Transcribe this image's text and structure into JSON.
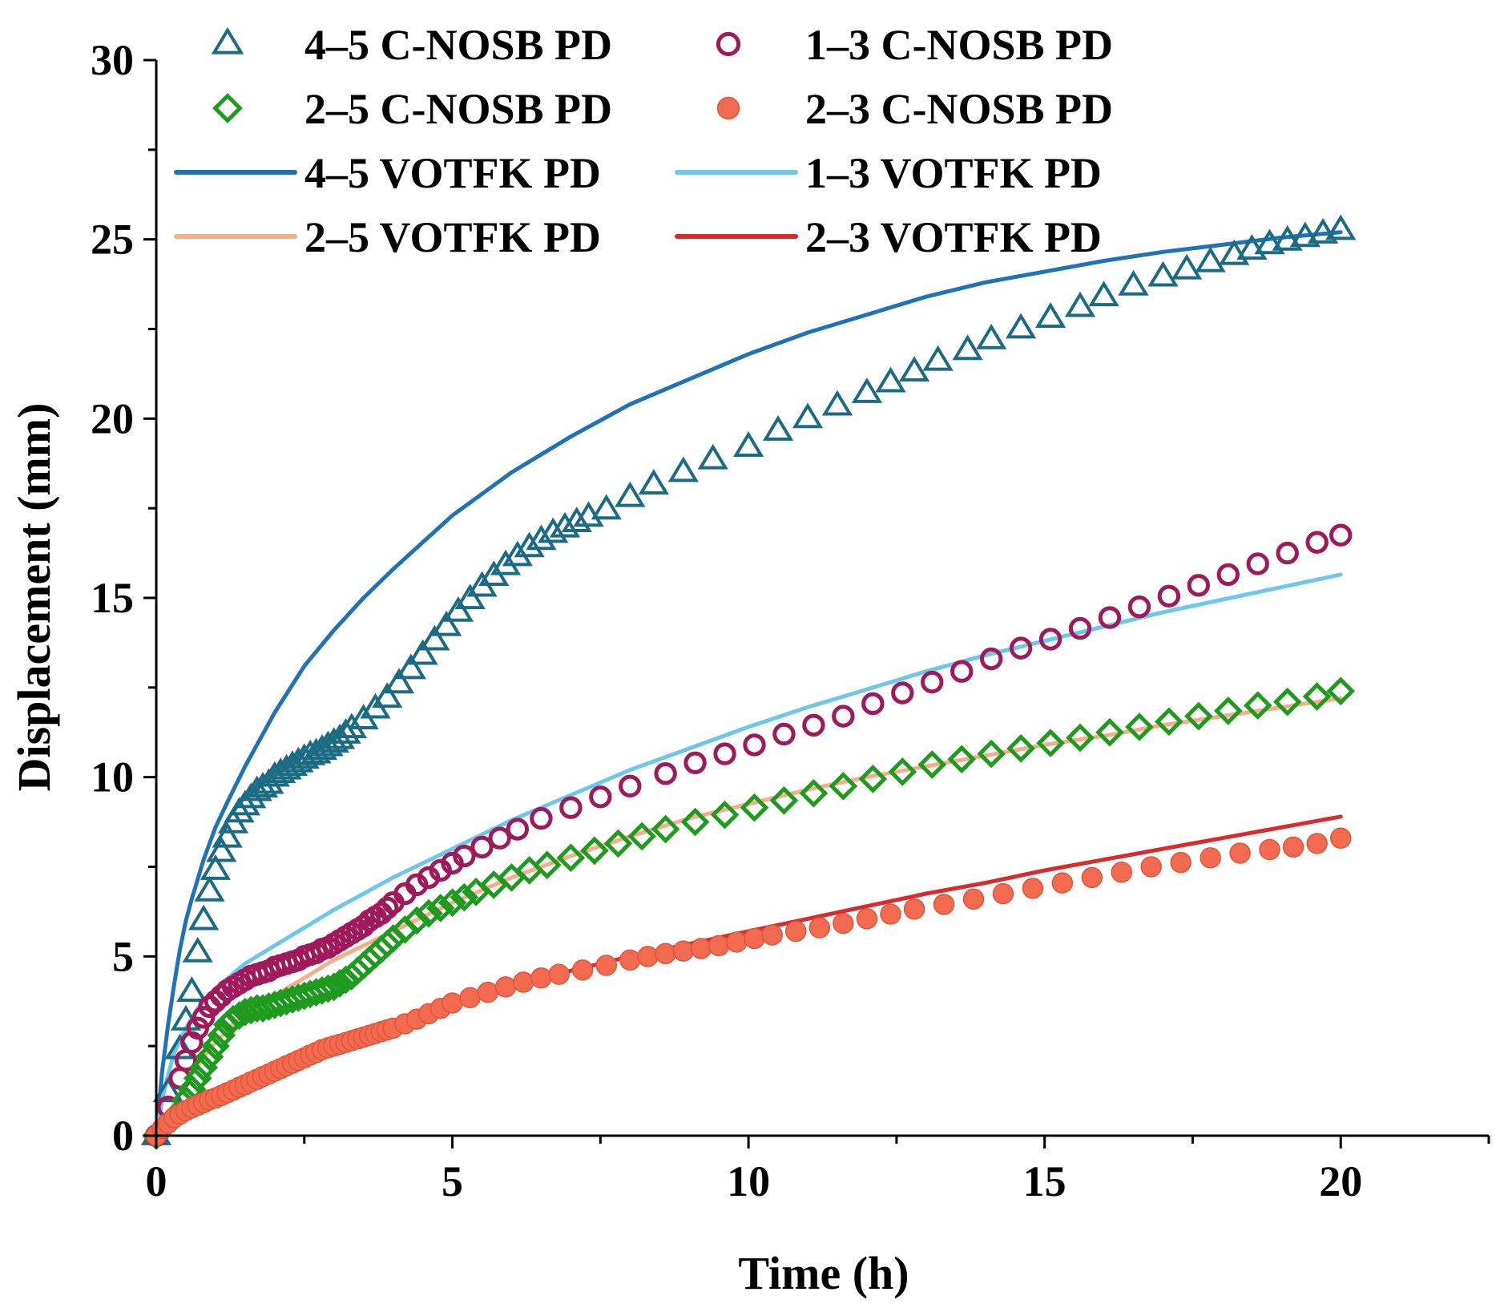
{
  "chart_data": {
    "type": "scatter",
    "xlabel": "Time (h)",
    "ylabel": "Displacement (mm)",
    "xlim": [
      0,
      22.5
    ],
    "ylim": [
      0,
      30
    ],
    "xticks": [
      "0",
      "5",
      "10",
      "15",
      "20"
    ],
    "yticks": [
      "0",
      "5",
      "10",
      "15",
      "20",
      "25",
      "30"
    ],
    "grid": false,
    "legend_position": "top-left",
    "series": [
      {
        "name": "4–5 C-NOSB PD",
        "kind": "markers",
        "marker": "triangle-open",
        "color": "#1B6B84",
        "x": [
          0,
          0.2,
          0.4,
          0.5,
          0.6,
          0.7,
          0.8,
          0.9,
          1.0,
          1.1,
          1.2,
          1.3,
          1.4,
          1.5,
          1.6,
          1.7,
          1.8,
          1.9,
          2.0,
          2.1,
          2.2,
          2.3,
          2.4,
          2.5,
          2.6,
          2.7,
          2.8,
          2.9,
          3.0,
          3.1,
          3.2,
          3.3,
          3.5,
          3.7,
          3.9,
          4.1,
          4.3,
          4.5,
          4.7,
          4.9,
          5.1,
          5.3,
          5.5,
          5.7,
          5.9,
          6.1,
          6.3,
          6.5,
          6.7,
          6.9,
          7.1,
          7.3,
          7.6,
          8.0,
          8.4,
          8.9,
          9.4,
          10.0,
          10.5,
          11.0,
          11.5,
          12.0,
          12.4,
          12.8,
          13.2,
          13.7,
          14.1,
          14.6,
          15.1,
          15.6,
          16.0,
          16.5,
          17.0,
          17.4,
          17.8,
          18.2,
          18.5,
          18.8,
          19.1,
          19.4,
          19.7,
          20.0
        ],
        "y": [
          0,
          1.2,
          2.4,
          3.2,
          4.0,
          5.1,
          6.0,
          6.8,
          7.4,
          7.9,
          8.3,
          8.7,
          9.0,
          9.2,
          9.4,
          9.6,
          9.7,
          9.8,
          10.0,
          10.1,
          10.2,
          10.3,
          10.4,
          10.5,
          10.6,
          10.65,
          10.75,
          10.85,
          10.95,
          11.05,
          11.2,
          11.35,
          11.6,
          11.9,
          12.2,
          12.6,
          13.0,
          13.4,
          13.8,
          14.2,
          14.6,
          14.95,
          15.3,
          15.6,
          15.9,
          16.15,
          16.4,
          16.6,
          16.8,
          16.95,
          17.1,
          17.25,
          17.45,
          17.8,
          18.15,
          18.5,
          18.85,
          19.2,
          19.65,
          20.0,
          20.35,
          20.7,
          21.0,
          21.3,
          21.6,
          21.9,
          22.2,
          22.5,
          22.8,
          23.1,
          23.4,
          23.7,
          23.95,
          24.15,
          24.35,
          24.55,
          24.7,
          24.85,
          24.95,
          25.05,
          25.15,
          25.25
        ]
      },
      {
        "name": "1–3 C-NOSB PD",
        "kind": "markers",
        "marker": "circle-open",
        "color": "#A0195A",
        "x": [
          0,
          0.2,
          0.4,
          0.5,
          0.6,
          0.7,
          0.8,
          0.9,
          1.0,
          1.1,
          1.2,
          1.3,
          1.4,
          1.5,
          1.6,
          1.7,
          1.8,
          1.9,
          2.0,
          2.1,
          2.2,
          2.3,
          2.4,
          2.5,
          2.6,
          2.7,
          2.8,
          2.9,
          3.0,
          3.1,
          3.2,
          3.3,
          3.4,
          3.5,
          3.6,
          3.7,
          3.8,
          3.9,
          4.0,
          4.2,
          4.4,
          4.6,
          4.8,
          5.0,
          5.2,
          5.5,
          5.8,
          6.1,
          6.5,
          7.0,
          7.5,
          8.0,
          8.6,
          9.1,
          9.6,
          10.1,
          10.6,
          11.1,
          11.6,
          12.1,
          12.6,
          13.1,
          13.6,
          14.1,
          14.6,
          15.1,
          15.6,
          16.1,
          16.6,
          17.1,
          17.6,
          18.1,
          18.6,
          19.1,
          19.6,
          20.0
        ],
        "y": [
          0,
          0.8,
          1.6,
          2.1,
          2.6,
          3.0,
          3.3,
          3.6,
          3.75,
          3.9,
          4.05,
          4.15,
          4.25,
          4.35,
          4.45,
          4.5,
          4.55,
          4.6,
          4.7,
          4.75,
          4.8,
          4.85,
          4.9,
          5.0,
          5.05,
          5.1,
          5.2,
          5.25,
          5.35,
          5.45,
          5.55,
          5.65,
          5.75,
          5.85,
          6.0,
          6.1,
          6.2,
          6.35,
          6.5,
          6.75,
          7.0,
          7.2,
          7.4,
          7.6,
          7.8,
          8.05,
          8.3,
          8.55,
          8.85,
          9.15,
          9.45,
          9.75,
          10.1,
          10.4,
          10.65,
          10.9,
          11.2,
          11.45,
          11.7,
          12.05,
          12.35,
          12.65,
          12.95,
          13.3,
          13.6,
          13.85,
          14.15,
          14.45,
          14.75,
          15.05,
          15.35,
          15.65,
          15.95,
          16.25,
          16.55,
          16.75
        ]
      },
      {
        "name": "2–5 C-NOSB PD",
        "kind": "markers",
        "marker": "diamond-open",
        "color": "#1E9A1E",
        "x": [
          0,
          0.3,
          0.5,
          0.6,
          0.7,
          0.8,
          0.9,
          1.0,
          1.1,
          1.2,
          1.3,
          1.4,
          1.5,
          1.6,
          1.7,
          1.8,
          1.9,
          2.0,
          2.1,
          2.2,
          2.3,
          2.4,
          2.5,
          2.6,
          2.7,
          2.8,
          2.9,
          3.0,
          3.1,
          3.2,
          3.3,
          3.4,
          3.5,
          3.6,
          3.7,
          3.8,
          3.9,
          4.0,
          4.2,
          4.4,
          4.6,
          4.8,
          5.0,
          5.2,
          5.4,
          5.7,
          6.0,
          6.3,
          6.6,
          7.0,
          7.4,
          7.8,
          8.2,
          8.6,
          9.1,
          9.6,
          10.1,
          10.6,
          11.1,
          11.6,
          12.1,
          12.6,
          13.1,
          13.6,
          14.1,
          14.6,
          15.1,
          15.6,
          16.1,
          16.6,
          17.1,
          17.6,
          18.1,
          18.6,
          19.1,
          19.6,
          20.0
        ],
        "y": [
          0,
          0.5,
          1.0,
          1.3,
          1.6,
          1.9,
          2.2,
          2.5,
          2.8,
          3.1,
          3.25,
          3.35,
          3.45,
          3.5,
          3.55,
          3.55,
          3.6,
          3.65,
          3.7,
          3.75,
          3.8,
          3.85,
          3.9,
          3.95,
          4.0,
          4.05,
          4.1,
          4.15,
          4.25,
          4.35,
          4.45,
          4.6,
          4.75,
          4.9,
          5.05,
          5.2,
          5.35,
          5.5,
          5.75,
          6.0,
          6.2,
          6.35,
          6.5,
          6.65,
          6.8,
          7.0,
          7.2,
          7.4,
          7.55,
          7.75,
          7.95,
          8.15,
          8.35,
          8.55,
          8.75,
          8.95,
          9.15,
          9.35,
          9.55,
          9.75,
          9.95,
          10.15,
          10.35,
          10.5,
          10.65,
          10.8,
          10.95,
          11.1,
          11.25,
          11.4,
          11.55,
          11.7,
          11.85,
          12.0,
          12.1,
          12.25,
          12.4
        ]
      },
      {
        "name": "2–3 C-NOSB PD",
        "kind": "markers",
        "marker": "circle-filled",
        "color": "#F26A4F",
        "x": [
          0,
          0.1,
          0.2,
          0.3,
          0.4,
          0.5,
          0.6,
          0.7,
          0.8,
          0.9,
          1.0,
          1.1,
          1.2,
          1.3,
          1.4,
          1.5,
          1.6,
          1.7,
          1.8,
          1.9,
          2.0,
          2.1,
          2.2,
          2.3,
          2.4,
          2.5,
          2.6,
          2.7,
          2.8,
          2.9,
          3.0,
          3.1,
          3.2,
          3.3,
          3.4,
          3.5,
          3.6,
          3.7,
          3.8,
          3.9,
          4.0,
          4.2,
          4.4,
          4.6,
          4.8,
          5.0,
          5.3,
          5.6,
          5.9,
          6.2,
          6.5,
          6.8,
          7.2,
          7.6,
          8.0,
          8.3,
          8.6,
          8.9,
          9.2,
          9.5,
          9.8,
          10.1,
          10.4,
          10.8,
          11.2,
          11.6,
          12.0,
          12.4,
          12.8,
          13.3,
          13.8,
          14.3,
          14.8,
          15.3,
          15.8,
          16.3,
          16.8,
          17.3,
          17.8,
          18.3,
          18.8,
          19.2,
          19.6,
          20.0
        ],
        "y": [
          0,
          0.2,
          0.35,
          0.5,
          0.6,
          0.7,
          0.78,
          0.85,
          0.92,
          1.0,
          1.05,
          1.12,
          1.2,
          1.27,
          1.35,
          1.42,
          1.5,
          1.57,
          1.65,
          1.72,
          1.8,
          1.87,
          1.95,
          2.02,
          2.1,
          2.17,
          2.25,
          2.32,
          2.4,
          2.45,
          2.5,
          2.55,
          2.6,
          2.65,
          2.7,
          2.75,
          2.8,
          2.85,
          2.9,
          2.95,
          3.0,
          3.12,
          3.25,
          3.4,
          3.55,
          3.7,
          3.85,
          4.0,
          4.15,
          4.28,
          4.4,
          4.5,
          4.62,
          4.75,
          4.9,
          5.0,
          5.08,
          5.15,
          5.22,
          5.3,
          5.4,
          5.5,
          5.6,
          5.7,
          5.8,
          5.92,
          6.05,
          6.18,
          6.32,
          6.45,
          6.6,
          6.75,
          6.9,
          7.05,
          7.2,
          7.35,
          7.5,
          7.62,
          7.75,
          7.88,
          7.98,
          8.05,
          8.15,
          8.3
        ]
      },
      {
        "name": "4–5 VOTFK PD",
        "kind": "line",
        "color": "#1F72B8",
        "x": [
          0,
          0.1,
          0.2,
          0.3,
          0.4,
          0.5,
          0.6,
          0.8,
          1.0,
          1.2,
          1.5,
          2.0,
          2.5,
          3.0,
          3.5,
          4.0,
          5.0,
          6.0,
          7.0,
          8.0,
          9.0,
          10.0,
          11.0,
          12.0,
          13.0,
          14.0,
          15.0,
          16.0,
          17.0,
          18.0,
          19.0,
          20.0
        ],
        "y": [
          0,
          1.8,
          3.1,
          4.2,
          5.2,
          6.0,
          6.6,
          7.7,
          8.6,
          9.3,
          10.3,
          11.8,
          13.1,
          14.1,
          15.0,
          15.8,
          17.3,
          18.5,
          19.5,
          20.4,
          21.1,
          21.8,
          22.4,
          22.9,
          23.4,
          23.8,
          24.1,
          24.4,
          24.65,
          24.85,
          25.05,
          25.2
        ]
      },
      {
        "name": "1–3 VOTFK PD",
        "kind": "line",
        "color": "#6EC6EA",
        "x": [
          0,
          0.1,
          0.2,
          0.3,
          0.5,
          0.7,
          1.0,
          1.5,
          2.0,
          3.0,
          4.0,
          5.0,
          6.0,
          7.0,
          8.0,
          9.0,
          10.0,
          11.0,
          12.0,
          13.0,
          14.0,
          15.0,
          16.0,
          17.0,
          18.0,
          19.0,
          20.0
        ],
        "y": [
          0,
          1.0,
          1.7,
          2.3,
          3.0,
          3.55,
          4.1,
          4.8,
          5.3,
          6.3,
          7.2,
          8.0,
          8.8,
          9.5,
          10.2,
          10.8,
          11.4,
          11.95,
          12.45,
          12.95,
          13.4,
          13.8,
          14.2,
          14.6,
          14.95,
          15.3,
          15.65
        ]
      },
      {
        "name": "2–5 VOTFK PD",
        "kind": "line",
        "color": "#F5AE8A",
        "x": [
          0,
          0.2,
          0.4,
          0.6,
          0.8,
          1.0,
          1.3,
          1.6,
          2.0,
          2.5,
          3.0,
          3.5,
          4.0,
          5.0,
          6.0,
          7.0,
          8.0,
          9.0,
          10.0,
          11.0,
          12.0,
          13.0,
          14.0,
          15.0,
          16.0,
          17.0,
          18.0,
          19.0,
          20.0
        ],
        "y": [
          0,
          0.6,
          1.2,
          1.7,
          2.2,
          2.6,
          3.1,
          3.5,
          3.9,
          4.4,
          4.9,
          5.3,
          5.7,
          6.5,
          7.2,
          7.8,
          8.35,
          8.85,
          9.25,
          9.65,
          10.0,
          10.3,
          10.6,
          10.9,
          11.15,
          11.45,
          11.7,
          11.95,
          12.2
        ]
      },
      {
        "name": "2–3 VOTFK PD",
        "kind": "line",
        "color": "#D92B2B",
        "x": [
          0,
          0.2,
          0.4,
          0.6,
          0.8,
          1.0,
          1.5,
          2.0,
          2.5,
          3.0,
          3.5,
          4.0,
          5.0,
          6.0,
          7.0,
          8.0,
          9.0,
          10.0,
          11.0,
          12.0,
          13.0,
          14.0,
          15.0,
          16.0,
          17.0,
          18.0,
          19.0,
          20.0
        ],
        "y": [
          0,
          0.3,
          0.55,
          0.75,
          0.9,
          1.05,
          1.35,
          1.7,
          2.05,
          2.4,
          2.7,
          3.0,
          3.6,
          4.15,
          4.6,
          5.0,
          5.35,
          5.7,
          6.05,
          6.4,
          6.75,
          7.05,
          7.4,
          7.7,
          8.0,
          8.3,
          8.6,
          8.9
        ]
      }
    ]
  }
}
